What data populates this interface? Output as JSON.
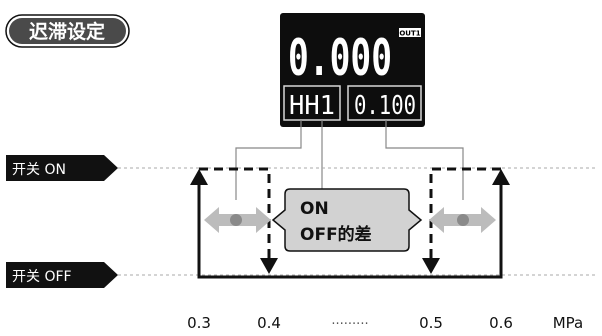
{
  "title": "迟滞设定",
  "display": {
    "main_value": "0.000",
    "out_badge": "OUT1",
    "left_param": "HH1",
    "right_param": "0.100"
  },
  "states": {
    "on_label": "开关 ON",
    "off_label": "开关 OFF"
  },
  "callout": {
    "line1": "ON",
    "line2": "OFF的差"
  },
  "axis": {
    "ticks": [
      "0.3",
      "0.4",
      "0.5",
      "0.6"
    ],
    "ellipsis": "·········",
    "unit": "MPa"
  }
}
